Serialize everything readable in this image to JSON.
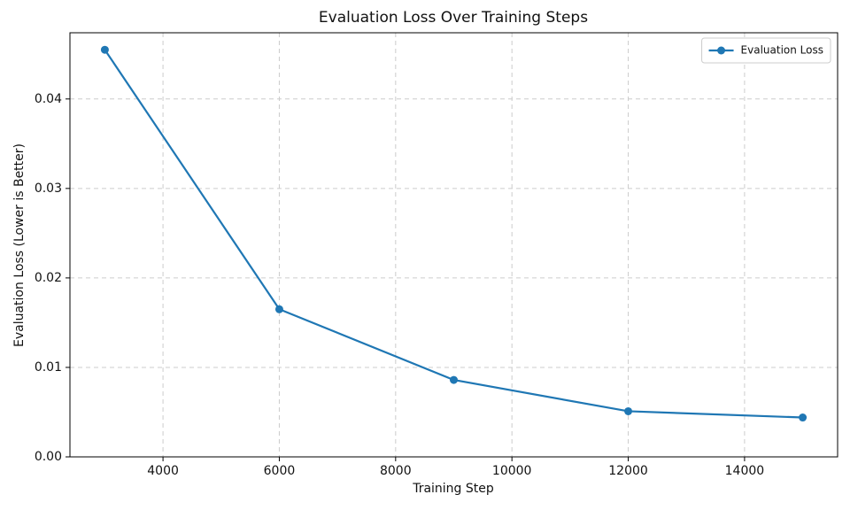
{
  "chart_data": {
    "type": "line",
    "title": "Evaluation Loss Over Training Steps",
    "xlabel": "Training Step",
    "ylabel": "Evaluation Loss (Lower is Better)",
    "x": [
      3000,
      6000,
      9000,
      12000,
      15000
    ],
    "series": [
      {
        "name": "Evaluation Loss",
        "color": "#1f77b4",
        "values": [
          0.0455,
          0.0165,
          0.0086,
          0.0051,
          0.0044
        ]
      }
    ],
    "xlim": [
      2400,
      15600
    ],
    "xticks": [
      4000,
      6000,
      8000,
      10000,
      12000,
      14000
    ],
    "ylim": [
      0,
      0.0474
    ],
    "yticks": [
      {
        "value": 0,
        "label": "0.00"
      },
      {
        "value": 0.01,
        "label": "0.01"
      },
      {
        "value": 0.02,
        "label": "0.02"
      },
      {
        "value": 0.03,
        "label": "0.03"
      },
      {
        "value": 0.04,
        "label": "0.04"
      }
    ],
    "grid": true,
    "legend": "upper right",
    "markers": true
  }
}
